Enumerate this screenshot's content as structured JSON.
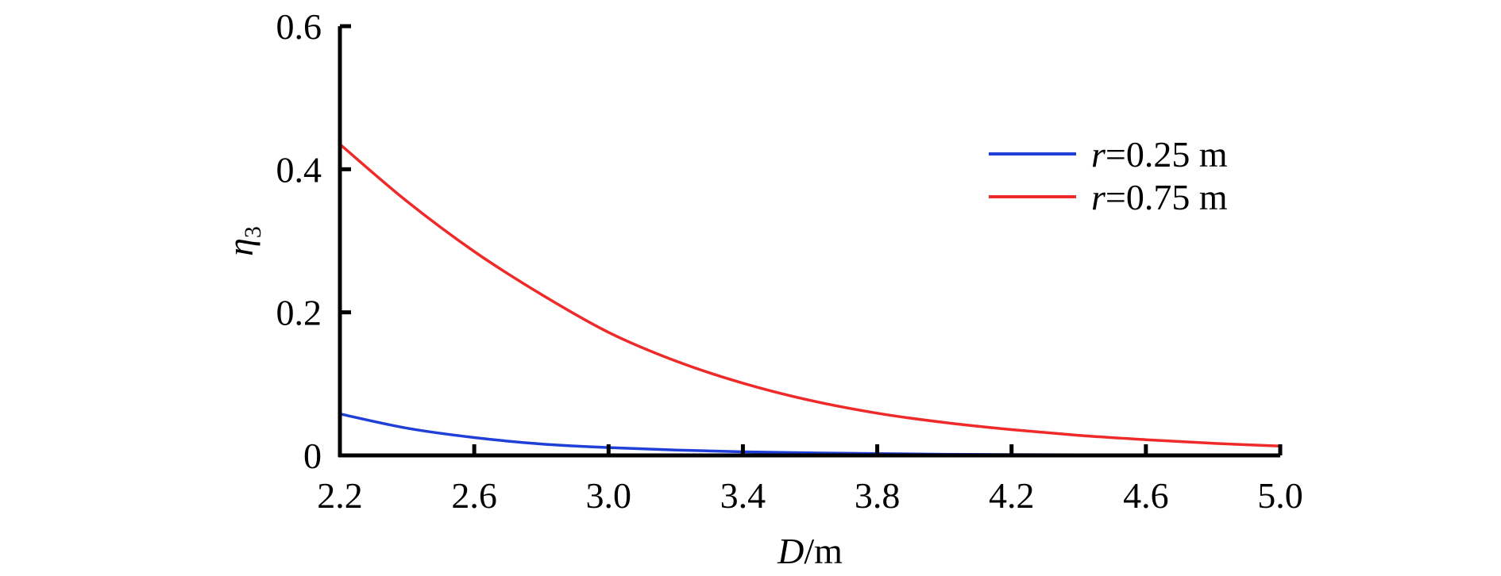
{
  "chart_data": {
    "type": "line",
    "title": "",
    "xlabel": "D/m",
    "xlabel_parts": {
      "symbol": "D",
      "unit": "/m"
    },
    "ylabel": "η3",
    "ylabel_parts": {
      "symbol": "η",
      "subscript": "3"
    },
    "xlim": [
      2.2,
      5.0
    ],
    "ylim": [
      0,
      0.6
    ],
    "xticks": [
      2.2,
      2.6,
      3.0,
      3.4,
      3.8,
      4.2,
      4.6,
      5.0
    ],
    "xtick_labels": [
      "2.2",
      "2.6",
      "3.0",
      "3.4",
      "3.8",
      "4.2",
      "4.6",
      "5.0"
    ],
    "yticks": [
      0,
      0.2,
      0.4,
      0.6
    ],
    "ytick_labels": [
      "0",
      "0.2",
      "0.4",
      "0.6"
    ],
    "grid": false,
    "legend_position": "top-right",
    "series": [
      {
        "name": "r=0.25 m",
        "label_symbol": "r",
        "label_rest": "=0.25 m",
        "color": "#1f3fd6",
        "x": [
          2.2,
          2.4,
          2.6,
          2.8,
          3.0,
          3.2,
          3.4,
          3.6,
          3.8,
          4.0,
          4.2,
          4.4,
          4.6,
          4.8,
          5.0
        ],
        "y": [
          0.058,
          0.038,
          0.025,
          0.016,
          0.011,
          0.0075,
          0.005,
          0.0035,
          0.0024,
          0.0016,
          0.0011,
          0.0008,
          0.0005,
          0.0004,
          0.0003
        ]
      },
      {
        "name": "r=0.75 m",
        "label_symbol": "r",
        "label_rest": "=0.75 m",
        "color": "#ee2a2a",
        "x": [
          2.2,
          2.4,
          2.6,
          2.8,
          3.0,
          3.2,
          3.4,
          3.6,
          3.8,
          4.0,
          4.2,
          4.4,
          4.6,
          4.8,
          5.0
        ],
        "y": [
          0.435,
          0.355,
          0.285,
          0.225,
          0.172,
          0.132,
          0.101,
          0.077,
          0.059,
          0.046,
          0.036,
          0.028,
          0.022,
          0.017,
          0.013
        ]
      }
    ]
  }
}
